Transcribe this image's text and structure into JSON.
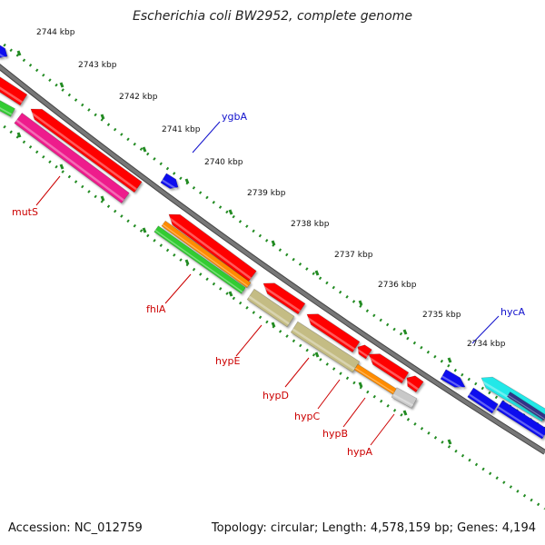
{
  "header": {
    "title": "Escherichia coli BW2952, complete genome"
  },
  "footer": {
    "accession": "Accession: NC_012759",
    "summary": "Topology: circular; Length: 4,578,159 bp; Genes: 4,194"
  },
  "map": {
    "ticks": [
      "2744 kbp",
      "2743 kbp",
      "2742 kbp",
      "2741 kbp",
      "2740 kbp",
      "2739 kbp",
      "2738 kbp",
      "2737 kbp",
      "2736 kbp",
      "2735 kbp",
      "2734 kbp"
    ],
    "genes": [
      {
        "name": "ygbA",
        "color": "#1111cc"
      },
      {
        "name": "hycA",
        "color": "#1111cc"
      },
      {
        "name": "mutS",
        "color": "#cc0000"
      },
      {
        "name": "fhlA",
        "color": "#cc0000"
      },
      {
        "name": "hypE",
        "color": "#cc0000"
      },
      {
        "name": "hypD",
        "color": "#cc0000"
      },
      {
        "name": "hypC",
        "color": "#cc0000"
      },
      {
        "name": "hypB",
        "color": "#cc0000"
      },
      {
        "name": "hypA",
        "color": "#cc0000"
      }
    ],
    "colors": {
      "backbone": "#777777",
      "cds_forward": "#ff0000",
      "cds_reverse_blue": "#0a0aee",
      "cyan": "#22e8e8",
      "green": "#33cc33",
      "magenta": "#ee1c8c",
      "orange": "#ff8c00",
      "khaki": "#c4bc84",
      "grey": "#c8c8c8",
      "tick_green": "#228b22"
    }
  }
}
